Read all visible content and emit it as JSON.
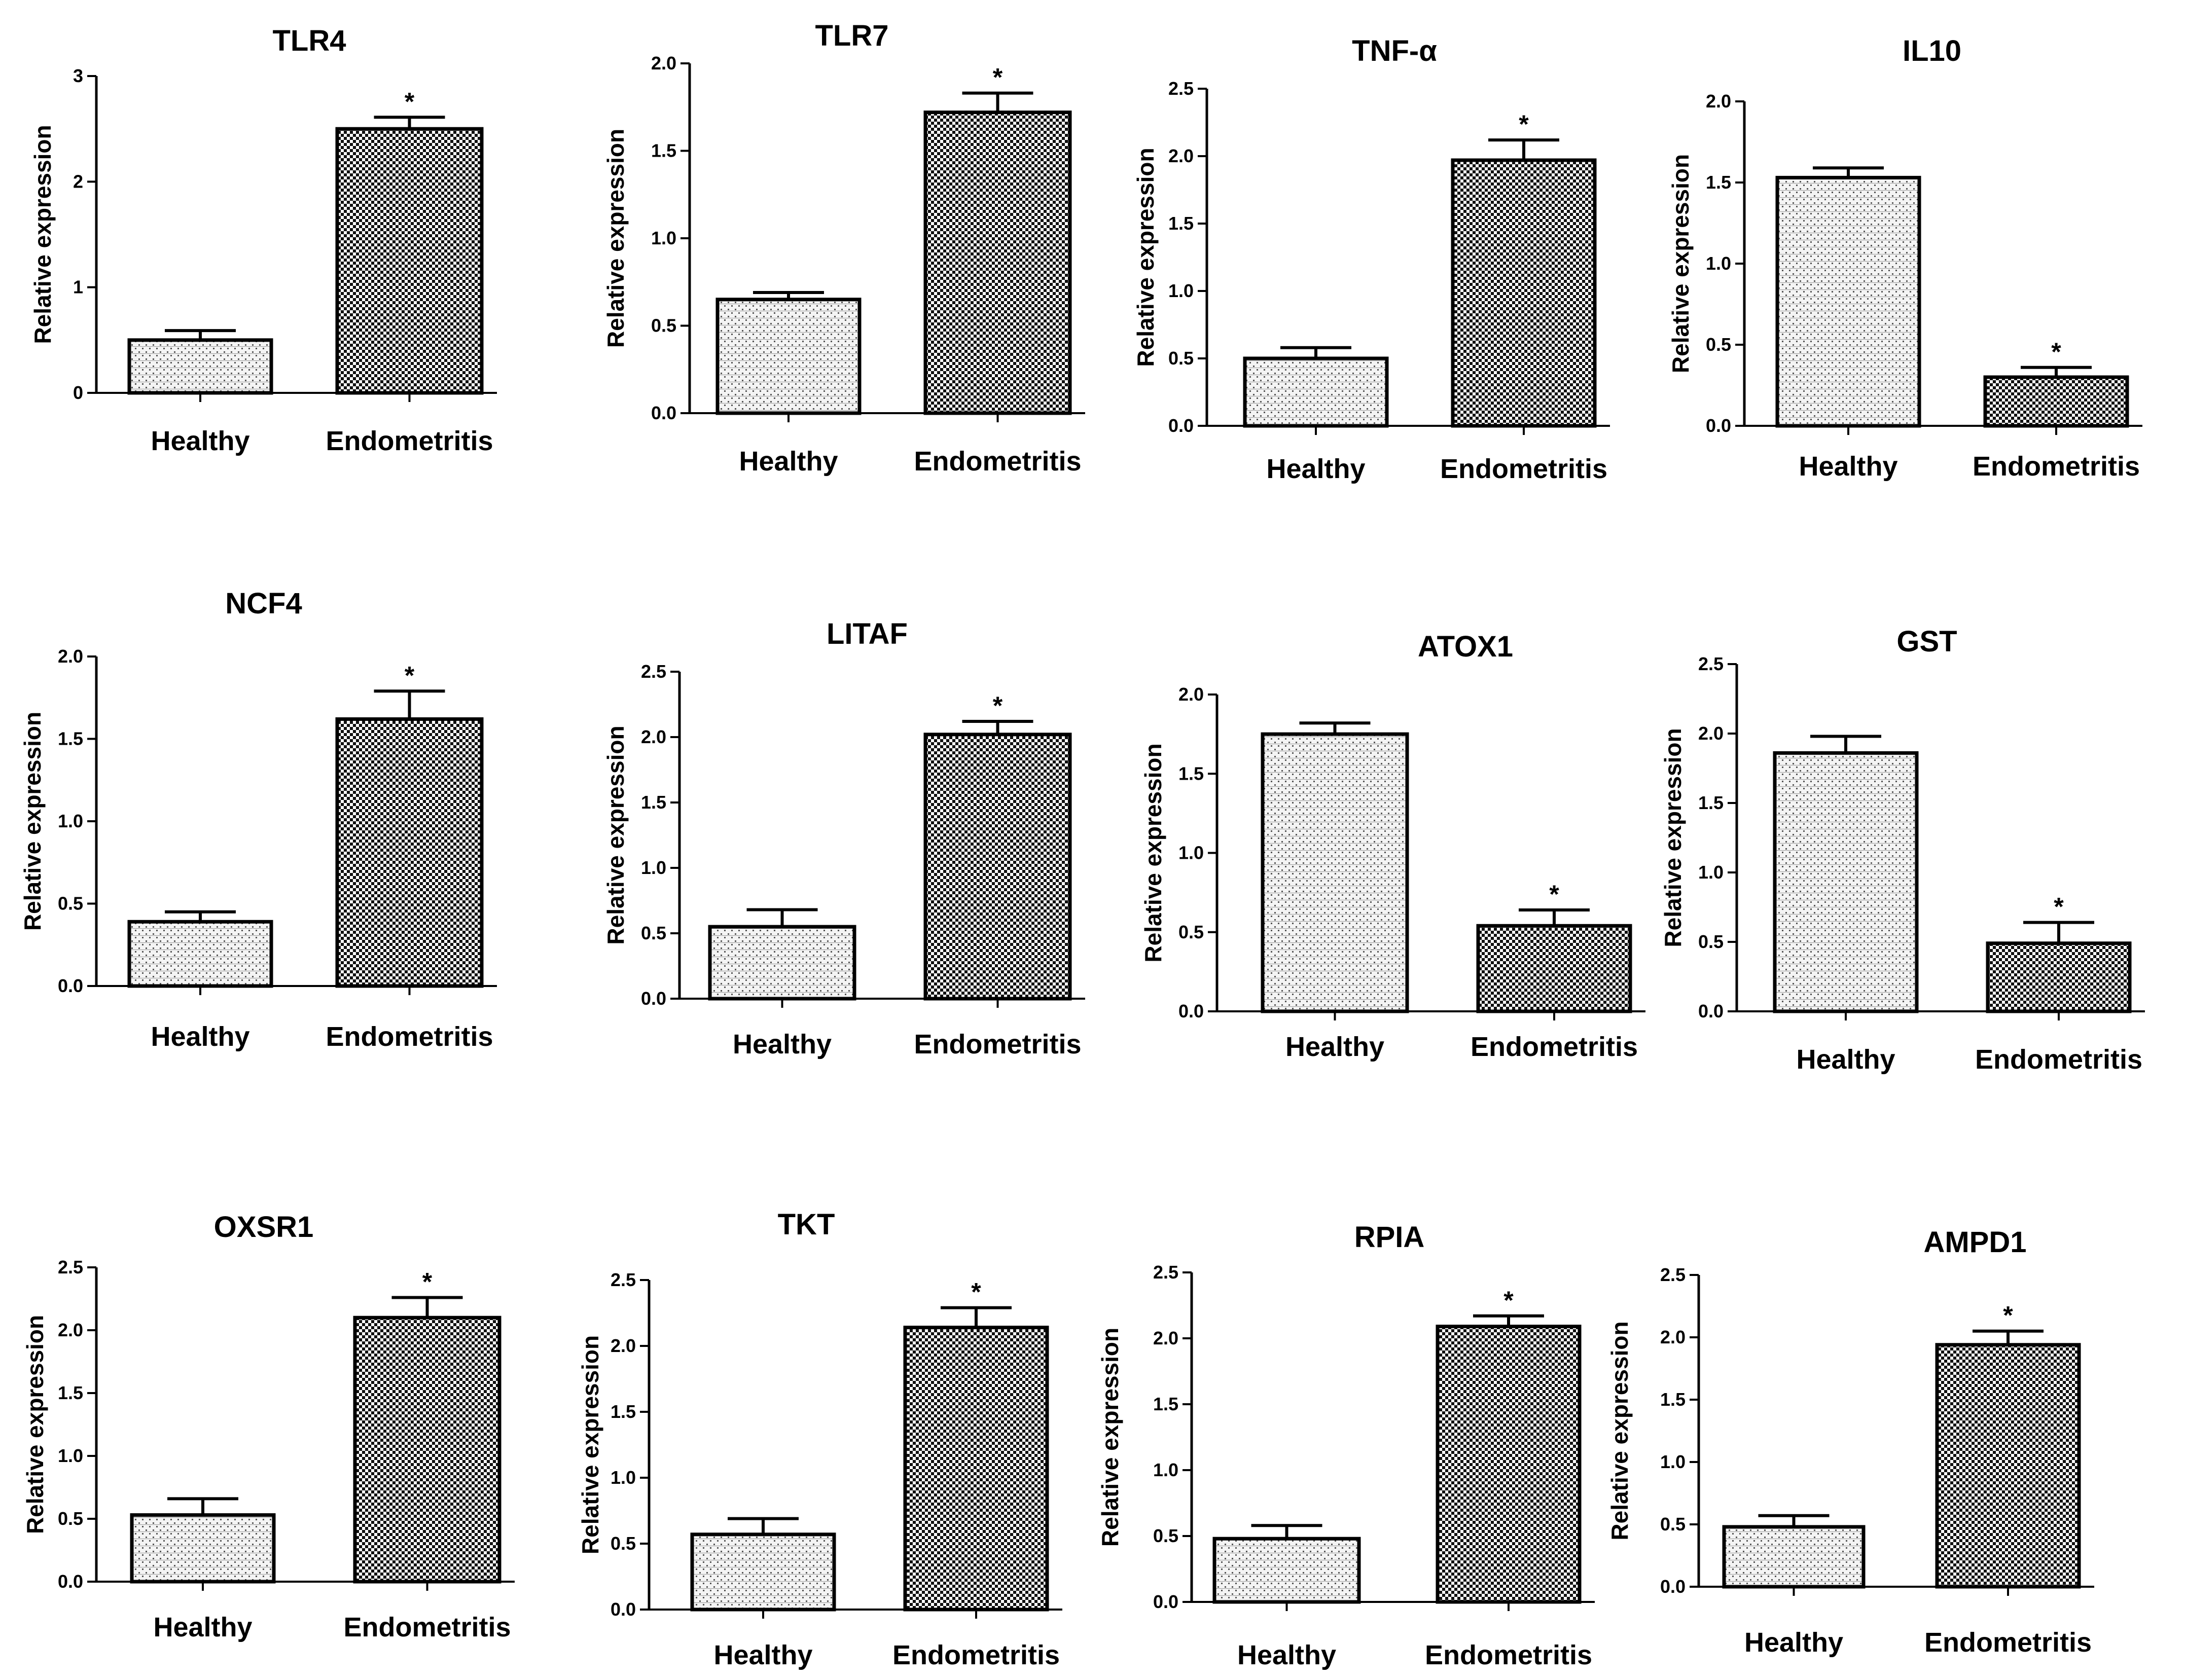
{
  "chart_data": [
    {
      "type": "bar",
      "title": "TLR4",
      "ylabel": "Relative expression",
      "categories": [
        "Healthy",
        "Endometritis"
      ],
      "values": [
        0.5,
        2.5
      ],
      "errors": [
        0.09,
        0.11
      ],
      "ylim": [
        0,
        3
      ],
      "yticks": [
        "0",
        "1",
        "2",
        "3"
      ],
      "significance": [
        "",
        "*"
      ]
    },
    {
      "type": "bar",
      "title": "TLR7",
      "ylabel": "Relative expression",
      "categories": [
        "Healthy",
        "Endometritis"
      ],
      "values": [
        0.65,
        1.72
      ],
      "errors": [
        0.04,
        0.11
      ],
      "ylim": [
        0,
        2
      ],
      "yticks": [
        "0.0",
        "0.5",
        "1.0",
        "1.5",
        "2.0"
      ],
      "significance": [
        "",
        "*"
      ]
    },
    {
      "type": "bar",
      "title": "TNF-α",
      "ylabel": "Relative expression",
      "categories": [
        "Healthy",
        "Endometritis"
      ],
      "values": [
        0.5,
        1.97
      ],
      "errors": [
        0.08,
        0.15
      ],
      "ylim": [
        0,
        2.5
      ],
      "yticks": [
        "0.0",
        "0.5",
        "1.0",
        "1.5",
        "2.0",
        "2.5"
      ],
      "significance": [
        "",
        "*"
      ]
    },
    {
      "type": "bar",
      "title": "IL10",
      "ylabel": "Relative expression",
      "categories": [
        "Healthy",
        "Endometritis"
      ],
      "values": [
        1.53,
        0.3
      ],
      "errors": [
        0.06,
        0.06
      ],
      "ylim": [
        0,
        2
      ],
      "yticks": [
        "0.0",
        "0.5",
        "1.0",
        "1.5",
        "2.0"
      ],
      "significance": [
        "",
        "*"
      ]
    },
    {
      "type": "bar",
      "title": "NCF4",
      "ylabel": "Relative expression",
      "categories": [
        "Healthy",
        "Endometritis"
      ],
      "values": [
        0.39,
        1.62
      ],
      "errors": [
        0.06,
        0.17
      ],
      "ylim": [
        0,
        2
      ],
      "yticks": [
        "0.0",
        "0.5",
        "1.0",
        "1.5",
        "2.0"
      ],
      "significance": [
        "",
        "*"
      ]
    },
    {
      "type": "bar",
      "title": "LITAF",
      "ylabel": "Relative expression",
      "categories": [
        "Healthy",
        "Endometritis"
      ],
      "values": [
        0.55,
        2.02
      ],
      "errors": [
        0.13,
        0.1
      ],
      "ylim": [
        0,
        2.5
      ],
      "yticks": [
        "0.0",
        "0.5",
        "1.0",
        "1.5",
        "2.0",
        "2.5"
      ],
      "significance": [
        "",
        "*"
      ]
    },
    {
      "type": "bar",
      "title": "ATOX1",
      "ylabel": "Relative expression",
      "categories": [
        "Healthy",
        "Endometritis"
      ],
      "values": [
        1.75,
        0.54
      ],
      "errors": [
        0.07,
        0.1
      ],
      "ylim": [
        0,
        2
      ],
      "yticks": [
        "0.0",
        "0.5",
        "1.0",
        "1.5",
        "2.0"
      ],
      "significance": [
        "",
        "*"
      ]
    },
    {
      "type": "bar",
      "title": "GST",
      "ylabel": "Relative expression",
      "categories": [
        "Healthy",
        "Endometritis"
      ],
      "values": [
        1.86,
        0.49
      ],
      "errors": [
        0.12,
        0.15
      ],
      "ylim": [
        0,
        2.5
      ],
      "yticks": [
        "0.0",
        "0.5",
        "1.0",
        "1.5",
        "2.0",
        "2.5"
      ],
      "significance": [
        "",
        "*"
      ]
    },
    {
      "type": "bar",
      "title": "OXSR1",
      "ylabel": "Relative expression",
      "categories": [
        "Healthy",
        "Endometritis"
      ],
      "values": [
        0.53,
        2.1
      ],
      "errors": [
        0.13,
        0.16
      ],
      "ylim": [
        0,
        2.5
      ],
      "yticks": [
        "0.0",
        "0.5",
        "1.0",
        "1.5",
        "2.0",
        "2.5"
      ],
      "significance": [
        "",
        "*"
      ]
    },
    {
      "type": "bar",
      "title": "TKT",
      "ylabel": "Relative expression",
      "categories": [
        "Healthy",
        "Endometritis"
      ],
      "values": [
        0.57,
        2.14
      ],
      "errors": [
        0.12,
        0.15
      ],
      "ylim": [
        0,
        2.5
      ],
      "yticks": [
        "0.0",
        "0.5",
        "1.0",
        "1.5",
        "2.0",
        "2.5"
      ],
      "significance": [
        "",
        "*"
      ]
    },
    {
      "type": "bar",
      "title": "RPIA",
      "ylabel": "Relative expression",
      "categories": [
        "Healthy",
        "Endometritis"
      ],
      "values": [
        0.48,
        2.09
      ],
      "errors": [
        0.1,
        0.08
      ],
      "ylim": [
        0,
        2.5
      ],
      "yticks": [
        "0.0",
        "0.5",
        "1.0",
        "1.5",
        "2.0",
        "2.5"
      ],
      "significance": [
        "",
        "*"
      ]
    },
    {
      "type": "bar",
      "title": "AMPD1",
      "ylabel": "Relative expression",
      "categories": [
        "Healthy",
        "Endometritis"
      ],
      "values": [
        0.48,
        1.94
      ],
      "errors": [
        0.09,
        0.11
      ],
      "ylim": [
        0,
        2.5
      ],
      "yticks": [
        "0.0",
        "0.5",
        "1.0",
        "1.5",
        "2.0",
        "2.5"
      ],
      "significance": [
        "",
        "*"
      ]
    }
  ]
}
